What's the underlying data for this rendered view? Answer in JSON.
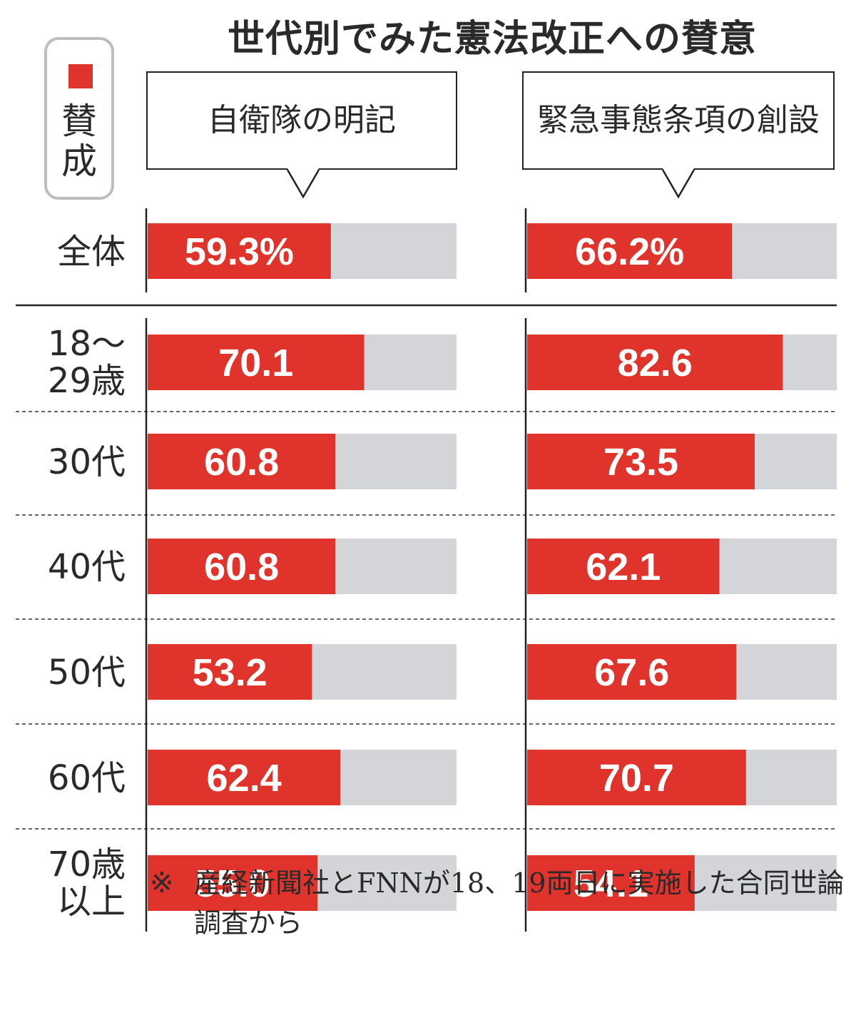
{
  "title": "世代別でみた憲法改正への賛意",
  "legend": {
    "label": "賛成",
    "color": "#e0332c"
  },
  "note": {
    "mark": "※",
    "text": "産経新聞社とFNNが18、19両日に実施した合同世論調査から"
  },
  "chart_data": {
    "type": "bar",
    "orientation": "horizontal",
    "stacked_with_remainder": true,
    "xlim": [
      0,
      100
    ],
    "unit": "%",
    "bar_color": "#e0332c",
    "remainder_color": "#d3d5d9",
    "categories": [
      "全体",
      "18〜29歳",
      "30代",
      "40代",
      "50代",
      "60代",
      "70歳以上"
    ],
    "category_lines": [
      [
        "全体"
      ],
      [
        "18〜",
        "29歳"
      ],
      [
        "30代"
      ],
      [
        "40代"
      ],
      [
        "50代"
      ],
      [
        "60代"
      ],
      [
        "70歳",
        "以上"
      ]
    ],
    "series": [
      {
        "name": "自衛隊の明記",
        "values": [
          59.3,
          70.1,
          60.8,
          60.8,
          53.2,
          62.4,
          55.0
        ],
        "labels": [
          "59.3%",
          "70.1",
          "60.8",
          "60.8",
          "53.2",
          "62.4",
          "55.0"
        ]
      },
      {
        "name": "緊急事態条項の創設",
        "values": [
          66.2,
          82.6,
          73.5,
          62.1,
          67.6,
          70.7,
          54.1
        ],
        "labels": [
          "66.2%",
          "82.6",
          "73.5",
          "62.1",
          "67.6",
          "70.7",
          "54.1"
        ]
      }
    ]
  }
}
